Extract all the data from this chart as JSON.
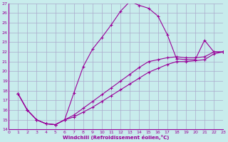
{
  "xlabel": "Windchill (Refroidissement éolien,°C)",
  "bg_color": "#c8ecec",
  "grid_color": "#aaaacc",
  "line_color": "#990099",
  "xmin": 0,
  "xmax": 23,
  "ymin": 14,
  "ymax": 27,
  "series1_x": [
    1,
    2,
    3,
    4,
    5,
    6,
    7,
    8,
    9,
    10,
    11,
    12,
    13,
    14,
    15,
    16,
    17,
    18,
    19,
    20,
    21,
    22,
    23
  ],
  "series1_y": [
    17.7,
    16.0,
    15.0,
    14.6,
    14.5,
    15.0,
    17.8,
    20.5,
    22.3,
    23.5,
    24.8,
    26.2,
    27.2,
    26.8,
    26.5,
    25.7,
    23.8,
    21.3,
    21.2,
    21.2,
    23.2,
    22.0,
    22.0
  ],
  "series2_x": [
    1,
    2,
    3,
    4,
    5,
    6,
    7,
    8,
    9,
    10,
    11,
    12,
    13,
    14,
    15,
    16,
    17,
    18,
    19,
    20,
    21,
    22,
    23
  ],
  "series2_y": [
    17.7,
    16.0,
    15.0,
    14.6,
    14.5,
    15.0,
    15.3,
    15.8,
    16.3,
    16.9,
    17.5,
    18.1,
    18.7,
    19.3,
    19.9,
    20.3,
    20.7,
    21.0,
    21.0,
    21.1,
    21.2,
    21.8,
    22.0
  ],
  "series3_x": [
    1,
    2,
    3,
    4,
    5,
    6,
    7,
    8,
    9,
    10,
    11,
    12,
    13,
    14,
    15,
    16,
    17,
    18,
    19,
    20,
    21,
    22,
    23
  ],
  "series3_y": [
    17.7,
    16.0,
    15.0,
    14.6,
    14.5,
    15.0,
    15.5,
    16.2,
    16.9,
    17.6,
    18.3,
    19.0,
    19.7,
    20.4,
    21.0,
    21.2,
    21.4,
    21.5,
    21.4,
    21.4,
    21.5,
    22.0,
    22.0
  ]
}
